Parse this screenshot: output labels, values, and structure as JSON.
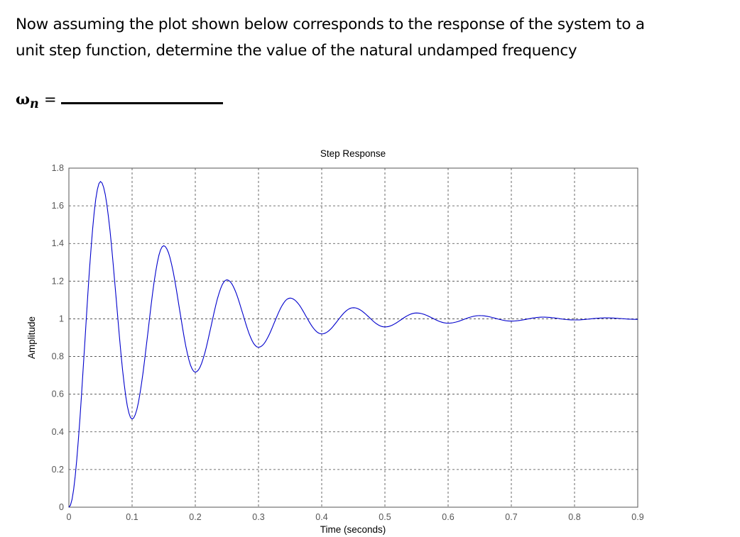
{
  "question": {
    "line1": "Now assuming the plot shown below corresponds to the response of the system to a",
    "line2": "unit step function, determine the value of the natural undamped frequency",
    "answer_symbol": "ω",
    "answer_subscript": "n",
    "answer_equals": "="
  },
  "chart_data": {
    "type": "line",
    "title": "Step Response",
    "xlabel": "Time (seconds)",
    "ylabel": "Amplitude",
    "xlim": [
      0,
      0.9
    ],
    "ylim": [
      0,
      1.8
    ],
    "xticks": [
      "0",
      "0.1",
      "0.2",
      "0.3",
      "0.4",
      "0.5",
      "0.6",
      "0.7",
      "0.8",
      "0.9"
    ],
    "yticks": [
      "0",
      "0.2",
      "0.4",
      "0.6",
      "0.8",
      "1",
      "1.2",
      "1.4",
      "1.6",
      "1.8"
    ],
    "grid": true,
    "line_color": "#0000cc",
    "extrema": {
      "x": [
        0,
        0.05,
        0.1,
        0.15,
        0.2,
        0.25,
        0.3,
        0.35,
        0.4,
        0.45,
        0.5,
        0.55,
        0.6,
        0.65,
        0.7,
        0.75,
        0.8,
        0.85,
        0.9
      ],
      "y": [
        0,
        1.729,
        0.468,
        1.388,
        0.717,
        1.207,
        0.849,
        1.11,
        0.92,
        1.059,
        0.957,
        1.031,
        0.977,
        1.017,
        0.988,
        1.009,
        0.994,
        1.005,
        0.997
      ]
    }
  }
}
